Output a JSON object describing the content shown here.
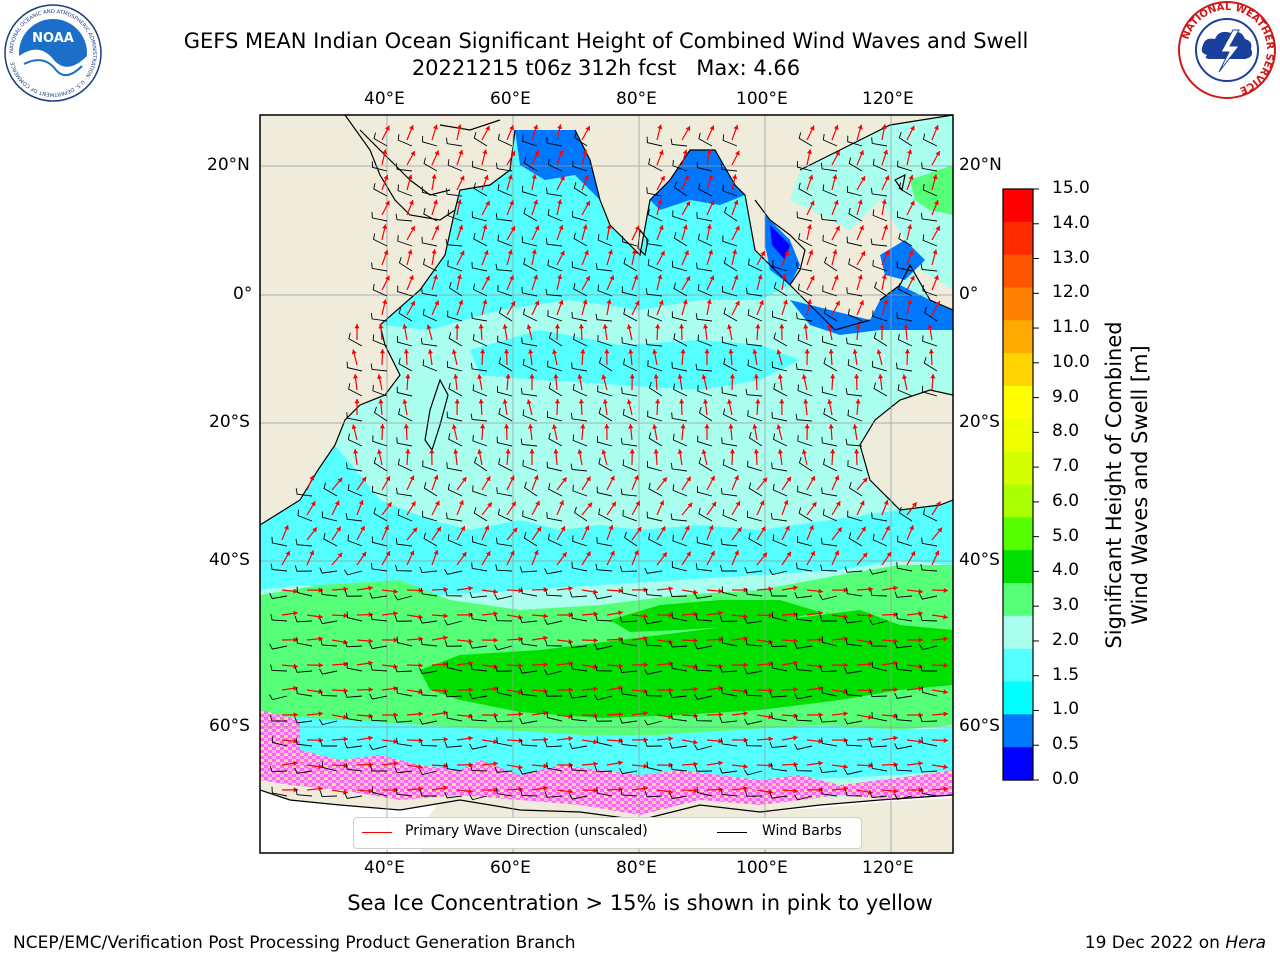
{
  "title": {
    "line1": "GEFS MEAN Indian Ocean Significant Height of Combined Wind Waves and Swell",
    "line2": "20221215 t06z 312h fcst   Max: 4.66"
  },
  "map": {
    "lon_ticks": [
      "40°E",
      "60°E",
      "80°E",
      "100°E",
      "120°E"
    ],
    "lat_ticks": [
      "20°N",
      "0°",
      "20°S",
      "40°S",
      "60°S"
    ]
  },
  "legend": {
    "wave_direction": "Primary Wave Direction (unscaled)",
    "wind_barbs": "Wind Barbs",
    "wave_color": "#ff0000",
    "barb_color": "#000000"
  },
  "colorbar": {
    "label_line1": "Significant Height of Combined",
    "label_line2": "Wind Waves and Swell [m]",
    "ticks": [
      "15.0",
      "14.0",
      "13.0",
      "12.0",
      "11.0",
      "10.0",
      "9.0",
      "8.0",
      "7.0",
      "6.0",
      "5.0",
      "4.0",
      "3.0",
      "2.0",
      "1.5",
      "1.0",
      "0.5",
      "0.0"
    ],
    "colors_top_to_bottom": [
      "#ff0000",
      "#ff2a00",
      "#ff5500",
      "#ff7f00",
      "#ffaa00",
      "#ffd400",
      "#ffff00",
      "#eeff00",
      "#d4ff00",
      "#aaff00",
      "#55ff00",
      "#00e000",
      "#55ff77",
      "#aaffee",
      "#55ffff",
      "#00ffff",
      "#0077ff",
      "#0000ff"
    ]
  },
  "caption": "Sea Ice Concentration > 15% is shown in pink to yellow",
  "footer": {
    "left": "NCEP/EMC/Verification Post Processing Product Generation Branch",
    "date": "19 Dec 2022 on ",
    "machine": "Hera"
  },
  "logos": {
    "noaa_text": "NOAA",
    "noaa_ring": "NATIONAL OCEANIC AND ATMOSPHERIC ADMINISTRATION · U.S. DEPARTMENT OF COMMERCE",
    "nws_ring": "NATIONAL WEATHER SERVICE"
  }
}
